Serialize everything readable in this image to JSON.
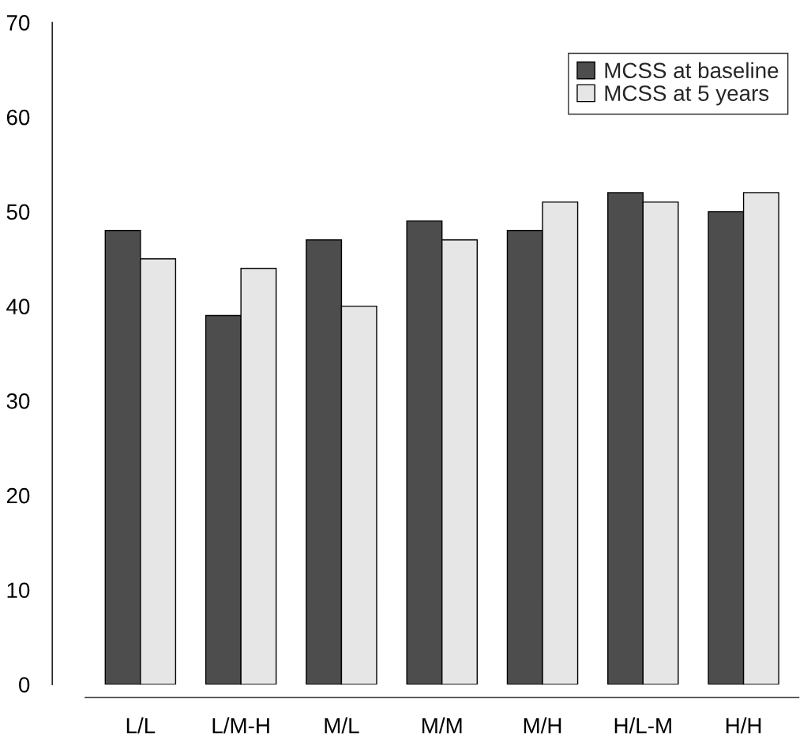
{
  "chart_data": {
    "type": "bar",
    "categories": [
      "L/L",
      "L/M-H",
      "M/L",
      "M/M",
      "M/H",
      "H/L-M",
      "H/H"
    ],
    "series": [
      {
        "name": "MCSS at baseline",
        "color": "#4d4d4d",
        "values": [
          48,
          39,
          47,
          49,
          48,
          52,
          50
        ]
      },
      {
        "name": "MCSS at 5 years",
        "color": "#e6e6e6",
        "values": [
          45,
          44,
          40,
          47,
          51,
          51,
          52
        ]
      }
    ],
    "ylim": [
      0,
      70
    ],
    "yticks": [
      0,
      10,
      20,
      30,
      40,
      50,
      60,
      70
    ],
    "grid": false,
    "legend": "top right"
  }
}
